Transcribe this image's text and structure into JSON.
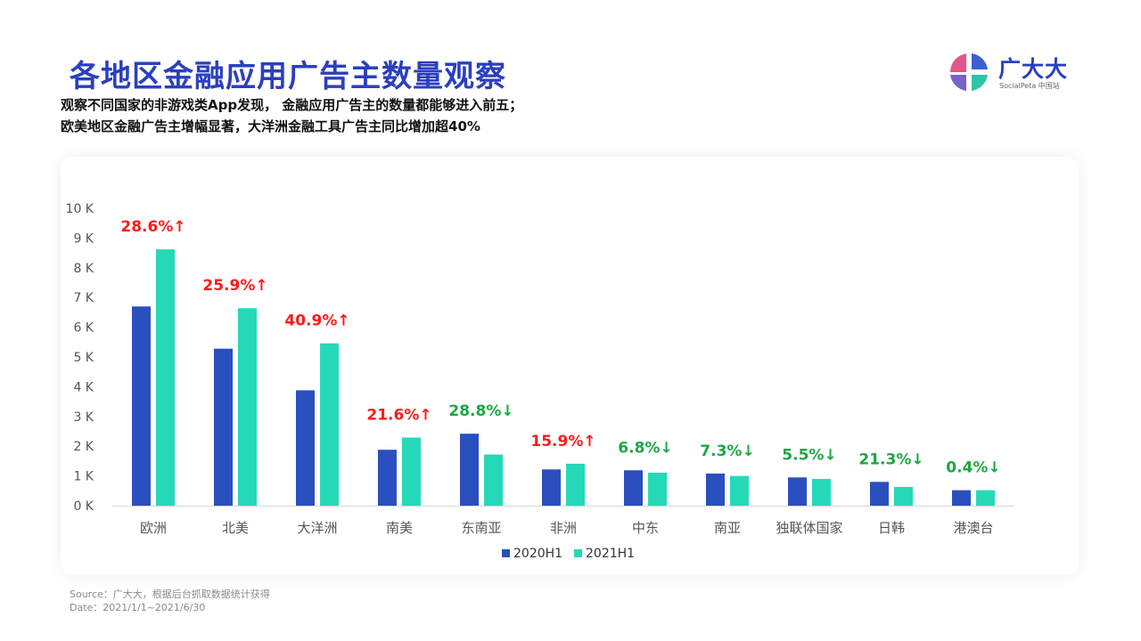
{
  "header": {
    "title": "各地区金融应用广告主数量观察",
    "subtitle_lines": [
      "观察不同国家的非游戏类App发现， 金融应用广告主的数量都能够进入前五；",
      "欧美地区金融广告主增幅显著，大洋洲金融工具广告主同比增加超40%"
    ]
  },
  "logo": {
    "name": "广大大",
    "sub": "SocialPeta 中国站",
    "colors": [
      "#e2568a",
      "#3d5fd0",
      "#2fc4a8",
      "#7b62c9"
    ]
  },
  "colors": {
    "series_2020": "#2a4fbf",
    "series_2021": "#25d9b8",
    "increase": "#ff1a1a",
    "decrease": "#1aa843",
    "axis_text": "#555555"
  },
  "chart_data": {
    "type": "bar",
    "categories": [
      "欧洲",
      "北美",
      "大洋洲",
      "南美",
      "东南亚",
      "非洲",
      "中东",
      "南亚",
      "独联体国家",
      "日韩",
      "港澳台"
    ],
    "series": [
      {
        "name": "2020H1",
        "values": [
          6700,
          5280,
          3880,
          1880,
          2420,
          1220,
          1190,
          1080,
          950,
          800,
          520
        ]
      },
      {
        "name": "2021H1",
        "values": [
          8620,
          6640,
          5460,
          2290,
          1720,
          1410,
          1110,
          1000,
          900,
          630,
          520
        ]
      }
    ],
    "annotations": [
      {
        "text": "28.6%↑",
        "direction": "up"
      },
      {
        "text": "25.9%↑",
        "direction": "up"
      },
      {
        "text": "40.9%↑",
        "direction": "up"
      },
      {
        "text": "21.6%↑",
        "direction": "up"
      },
      {
        "text": "28.8%↓",
        "direction": "down"
      },
      {
        "text": "15.9%↑",
        "direction": "up"
      },
      {
        "text": "6.8%↓",
        "direction": "down"
      },
      {
        "text": "7.3%↓",
        "direction": "down"
      },
      {
        "text": "5.5%↓",
        "direction": "down"
      },
      {
        "text": "21.3%↓",
        "direction": "down"
      },
      {
        "text": "0.4%↓",
        "direction": "down"
      }
    ],
    "yticks": [
      {
        "value": 0,
        "label": "0 K"
      },
      {
        "value": 1000,
        "label": "1 K"
      },
      {
        "value": 2000,
        "label": "2 K"
      },
      {
        "value": 3000,
        "label": "3 K"
      },
      {
        "value": 4000,
        "label": "4 K"
      },
      {
        "value": 5000,
        "label": "5 K"
      },
      {
        "value": 6000,
        "label": "6 K"
      },
      {
        "value": 7000,
        "label": "7 K"
      },
      {
        "value": 8000,
        "label": "8 K"
      },
      {
        "value": 9000,
        "label": "9 K"
      },
      {
        "value": 10000,
        "label": "10 K"
      }
    ],
    "ylim": [
      0,
      10000
    ],
    "grid": false,
    "legend_position": "bottom-center",
    "title": "",
    "xlabel": "",
    "ylabel": ""
  },
  "source": {
    "line1": "Source：广大大，根据后台抓取数据统计获得",
    "line2": "Date：2021/1/1~2021/6/30"
  }
}
